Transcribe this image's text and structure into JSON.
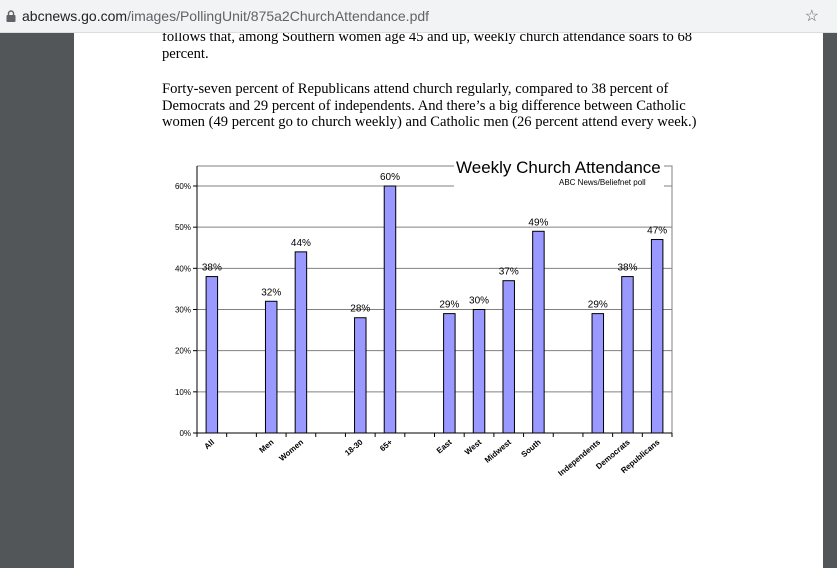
{
  "browser": {
    "url_host": "abcnews.go.com",
    "url_path": "/images/PollingUnit/875a2ChurchAttendance.pdf"
  },
  "document": {
    "paragraph1": "follows that, among Southern women age 45 and up, weekly church attendance soars to 68 percent.",
    "paragraph2": "Forty-seven percent of Republicans attend church regularly, compared to 38 percent of Democrats and 29 percent of independents. And there’s a big difference between Catholic women (49 percent go to church weekly) and Catholic men (26 percent attend every week.)"
  },
  "chart_data": {
    "type": "bar",
    "title": "Weekly Church Attendance",
    "subtitle": "ABC News/Beliefnet poll",
    "ylim": [
      0,
      60
    ],
    "y_ticks": [
      "0%",
      "10%",
      "20%",
      "30%",
      "40%",
      "50%",
      "60%"
    ],
    "categories": [
      "All",
      "Men",
      "Women",
      "18-30",
      "65+",
      "East",
      "West",
      "Midwest",
      "South",
      "Independents",
      "Democrats",
      "Republicans"
    ],
    "values": [
      38,
      32,
      44,
      28,
      60,
      29,
      30,
      37,
      49,
      29,
      38,
      47
    ],
    "data_labels": [
      "38%",
      "32%",
      "44%",
      "28%",
      "60%",
      "29%",
      "30%",
      "37%",
      "49%",
      "29%",
      "38%",
      "47%"
    ],
    "bar_color": "#9999ff",
    "grid": true
  }
}
